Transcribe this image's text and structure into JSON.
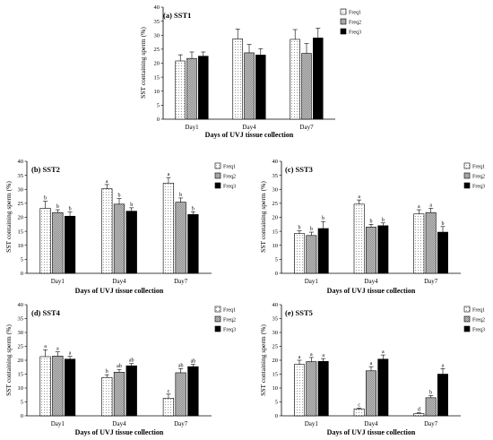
{
  "colors": {
    "freq1": "#ffffff",
    "freq2": "#9a9a9a",
    "freq3": "#000000",
    "axis": "#000000"
  },
  "chart_data": [
    {
      "type": "bar",
      "title": "(a) SST1",
      "xlabel": "Days of UVJ tissue collection",
      "ylabel": "SST containing sperm (%)",
      "ylim": [
        0,
        40
      ],
      "yticks": [
        0,
        5,
        10,
        15,
        20,
        25,
        30,
        35,
        40
      ],
      "categories": [
        "Day1",
        "Day4",
        "Day7"
      ],
      "legend_position": "top-right",
      "series": [
        {
          "name": "Freq1",
          "values": [
            20.8,
            28.7,
            28.5
          ],
          "errors": [
            2.2,
            3.5,
            3.5
          ],
          "labels": [
            "",
            "",
            ""
          ]
        },
        {
          "name": "Freq2",
          "values": [
            21.7,
            23.7,
            23.5
          ],
          "errors": [
            2.3,
            3.0,
            3.5
          ],
          "labels": [
            "",
            "",
            ""
          ]
        },
        {
          "name": "Freq3",
          "values": [
            22.5,
            22.9,
            29.0
          ],
          "errors": [
            1.5,
            2.3,
            3.5
          ],
          "labels": [
            "",
            "",
            ""
          ]
        }
      ]
    },
    {
      "type": "bar",
      "title": "(b) SST2",
      "xlabel": "Days of UVJ tissue collection",
      "ylabel": "SST containing sperm (%)",
      "ylim": [
        0,
        40
      ],
      "yticks": [
        0,
        5,
        10,
        15,
        20,
        25,
        30,
        35,
        40
      ],
      "categories": [
        "Day1",
        "Day4",
        "Day7"
      ],
      "legend_position": "top-right",
      "series": [
        {
          "name": "Freq1",
          "values": [
            23.2,
            30.2,
            32.2
          ],
          "errors": [
            2.5,
            1.5,
            2.0
          ],
          "labels": [
            "b",
            "a",
            "a"
          ]
        },
        {
          "name": "Freq2",
          "values": [
            21.7,
            24.7,
            25.4
          ],
          "errors": [
            1.0,
            2.0,
            1.5
          ],
          "labels": [
            "b",
            "b",
            "b"
          ]
        },
        {
          "name": "Freq3",
          "values": [
            20.4,
            22.2,
            21.0
          ],
          "errors": [
            1.5,
            1.2,
            1.0
          ],
          "labels": [
            "b",
            "b",
            "b"
          ]
        }
      ]
    },
    {
      "type": "bar",
      "title": "(c) SST3",
      "xlabel": "Days of UVJ tissue collection",
      "ylabel": "SST containing sperm (%)",
      "ylim": [
        0,
        40
      ],
      "yticks": [
        0,
        5,
        10,
        15,
        20,
        25,
        30,
        35,
        40
      ],
      "categories": [
        "Day1",
        "Day4",
        "Day7"
      ],
      "legend_position": "top-right",
      "series": [
        {
          "name": "Freq1",
          "values": [
            14.2,
            24.7,
            21.2
          ],
          "errors": [
            1.0,
            1.5,
            1.5
          ],
          "labels": [
            "b",
            "a",
            "a"
          ]
        },
        {
          "name": "Freq2",
          "values": [
            13.5,
            16.5,
            21.7
          ],
          "errors": [
            1.2,
            1.0,
            1.5
          ],
          "labels": [
            "b",
            "b",
            "a"
          ]
        },
        {
          "name": "Freq3",
          "values": [
            16.0,
            17.0,
            14.7
          ],
          "errors": [
            2.5,
            1.0,
            2.0
          ],
          "labels": [
            "b",
            "b",
            "b"
          ]
        }
      ]
    },
    {
      "type": "bar",
      "title": "(d) SST4",
      "xlabel": "Days of UVJ tissue collection",
      "ylabel": "SST containing sperm (%)",
      "ylim": [
        0,
        40
      ],
      "yticks": [
        0,
        5,
        10,
        15,
        20,
        25,
        30,
        35,
        40
      ],
      "categories": [
        "Day1",
        "Day4",
        "Day7"
      ],
      "legend_position": "top-right",
      "series": [
        {
          "name": "Freq1",
          "values": [
            21.3,
            13.8,
            6.3
          ],
          "errors": [
            2.5,
            1.0,
            1.5
          ],
          "labels": [
            "a",
            "b",
            "c"
          ]
        },
        {
          "name": "Freq2",
          "values": [
            21.5,
            15.7,
            15.5
          ],
          "errors": [
            1.5,
            1.0,
            1.5
          ],
          "labels": [
            "a",
            "ab",
            "ab"
          ]
        },
        {
          "name": "Freq3",
          "values": [
            20.4,
            18.0,
            17.7
          ],
          "errors": [
            1.0,
            0.8,
            0.8
          ],
          "labels": [
            "a",
            "ab",
            "ab"
          ]
        }
      ]
    },
    {
      "type": "bar",
      "title": "(e) SST5",
      "xlabel": "Days of UVJ tissue collection",
      "ylabel": "SST containing sperm (%)",
      "ylim": [
        0,
        40
      ],
      "yticks": [
        0,
        5,
        10,
        15,
        20,
        25,
        30,
        35,
        40
      ],
      "categories": [
        "Day1",
        "Day4",
        "Day7"
      ],
      "legend_position": "top-right",
      "series": [
        {
          "name": "Freq1",
          "values": [
            18.5,
            2.5,
            0.8
          ],
          "errors": [
            1.5,
            0.3,
            0.3
          ],
          "labels": [
            "a",
            "c",
            "d"
          ]
        },
        {
          "name": "Freq2",
          "values": [
            19.5,
            16.2,
            6.5
          ],
          "errors": [
            1.5,
            1.5,
            0.8
          ],
          "labels": [
            "a",
            "a",
            "b"
          ]
        },
        {
          "name": "Freq3",
          "values": [
            19.6,
            20.4,
            15.0
          ],
          "errors": [
            1.0,
            1.5,
            2.0
          ],
          "labels": [
            "a",
            "a",
            "a"
          ]
        }
      ]
    }
  ]
}
